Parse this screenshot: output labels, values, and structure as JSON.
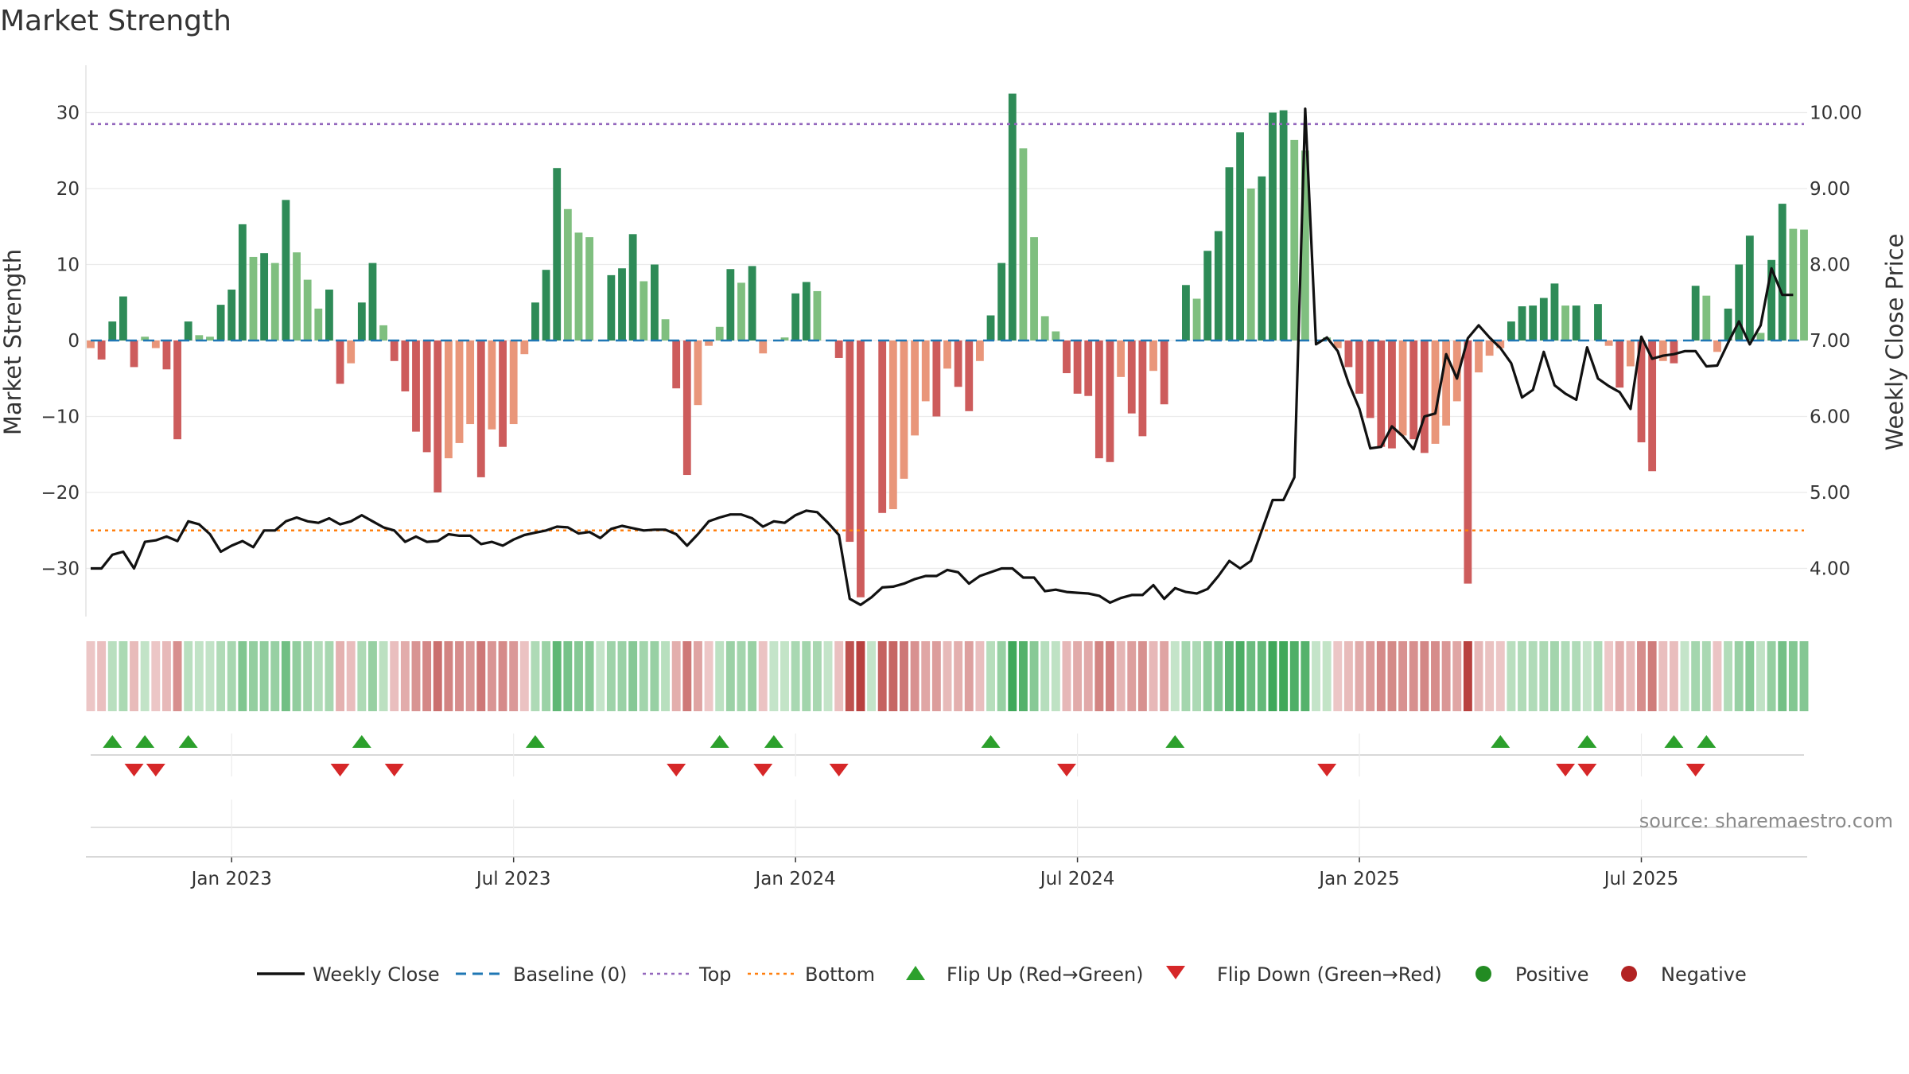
{
  "title": "Market Strength",
  "source": "source: sharemaestro.com",
  "colors": {
    "dark_green": "#2e8b57",
    "light_green": "#7fbf7f",
    "dark_red": "#cd5c5c",
    "light_red": "#e9967a",
    "close_line": "#111111",
    "baseline": "#1f77b4",
    "top": "#9467bd",
    "bottom": "#ff7f0e",
    "flip_up": "#2ca02c",
    "flip_down": "#d62728",
    "positive": "#228b22",
    "negative": "#b22222"
  },
  "chart_data": {
    "type": "bar",
    "ylabel_left": "Market Strength",
    "ylabel_right": "Weekly Close Price",
    "ylim_left": [
      -36,
      36
    ],
    "ylim_right": [
      3.3,
      10.2
    ],
    "left_ticks": [
      "30",
      "20",
      "10",
      "0",
      "−10",
      "−20",
      "−30"
    ],
    "right_ticks": [
      "10.00",
      "9.00",
      "8.00",
      "7.00",
      "6.00",
      "5.00",
      "4.00"
    ],
    "x_tick_labels": [
      "Jan 2023",
      "Jul 2023",
      "Jan 2024",
      "Jul 2024",
      "Jan 2025",
      "Jul 2025"
    ],
    "x_tick_weeks": [
      13,
      39,
      65,
      91,
      117,
      143
    ],
    "top_level": 28.5,
    "bottom_level": -25.0,
    "baseline": 0,
    "strength": [
      -1,
      -2.5,
      2.5,
      5.8,
      -3.5,
      0.5,
      -1,
      -3.8,
      -13,
      2.5,
      0.7,
      0.5,
      4.7,
      6.7,
      15.3,
      11,
      11.5,
      10.2,
      18.5,
      11.6,
      8,
      4.2,
      6.7,
      -5.7,
      -3,
      5,
      10.2,
      2,
      -2.7,
      -6.7,
      -12,
      -14.7,
      -20,
      -15.5,
      -13.5,
      -11,
      -18,
      -11.7,
      -14,
      -11,
      -1.8,
      5,
      9.3,
      22.7,
      17.3,
      14.2,
      13.6,
      0,
      8.6,
      9.5,
      14,
      7.8,
      10,
      2.8,
      -6.3,
      -17.7,
      -8.5,
      -0.7,
      1.8,
      9.4,
      7.6,
      9.8,
      -1.7,
      0,
      0.4,
      6.2,
      7.7,
      6.5,
      0,
      -2.3,
      -26.5,
      -33.8,
      0,
      -22.7,
      -22.2,
      -18.2,
      -12.5,
      -8,
      -10,
      -3.7,
      -6.1,
      -9.3,
      -2.7,
      3.3,
      10.2,
      32.5,
      25.3,
      13.6,
      3.2,
      1.2,
      -4.3,
      -7,
      -7.3,
      -15.5,
      -16,
      -4.8,
      -9.6,
      -12.6,
      -4,
      -8.4,
      0,
      7.3,
      5.5,
      11.8,
      14.4,
      22.8,
      27.4,
      20,
      21.6,
      30,
      30.3,
      26.4,
      25,
      0,
      0.4,
      -1,
      -3.5,
      -7,
      -10.2,
      -14,
      -14.2,
      -12.5,
      -13,
      -14.8,
      -13.6,
      -11.2,
      -8,
      -32,
      -4.2,
      -2,
      -1,
      2.5,
      4.5,
      4.6,
      5.6,
      7.5,
      4.6,
      4.6,
      0,
      4.8,
      -0.7,
      -6.2,
      -3.4,
      -13.4,
      -17.2,
      -2.7,
      -3,
      0,
      7.2,
      5.9,
      -1.5,
      4.2,
      10,
      13.8,
      1,
      10.6,
      18,
      14.7,
      14.6
    ],
    "series": [
      {
        "name": "Weekly Close",
        "values": [
          4.0,
          4.0,
          4.18,
          4.22,
          4.0,
          4.35,
          4.37,
          4.42,
          4.36,
          4.62,
          4.58,
          4.45,
          4.22,
          4.3,
          4.36,
          4.28,
          4.5,
          4.5,
          4.62,
          4.67,
          4.62,
          4.6,
          4.66,
          4.58,
          4.62,
          4.7,
          4.62,
          4.54,
          4.5,
          4.35,
          4.42,
          4.35,
          4.36,
          4.45,
          4.43,
          4.43,
          4.32,
          4.35,
          4.3,
          4.38,
          4.44,
          4.47,
          4.5,
          4.55,
          4.54,
          4.46,
          4.48,
          4.4,
          4.52,
          4.56,
          4.53,
          4.5,
          4.51,
          4.51,
          4.45,
          4.3,
          4.45,
          4.62,
          4.67,
          4.71,
          4.71,
          4.66,
          4.55,
          4.62,
          4.6,
          4.7,
          4.76,
          4.74,
          4.6,
          4.44,
          3.6,
          3.52,
          3.62,
          3.75,
          3.76,
          3.8,
          3.86,
          3.9,
          3.9,
          3.98,
          3.95,
          3.8,
          3.9,
          3.95,
          4.0,
          4.0,
          3.88,
          3.88,
          3.7,
          3.72,
          3.69,
          3.68,
          3.67,
          3.64,
          3.55,
          3.61,
          3.65,
          3.65,
          3.78,
          3.6,
          3.74,
          3.69,
          3.67,
          3.73,
          3.9,
          4.1,
          4.0,
          4.1,
          4.5,
          4.9,
          4.9,
          5.2,
          10.05,
          6.95,
          7.04,
          6.86,
          6.44,
          6.1,
          5.58,
          5.6,
          5.87,
          5.74,
          5.57,
          6.0,
          6.04,
          6.82,
          6.5,
          7.03,
          7.2,
          7.04,
          6.9,
          6.7,
          6.25,
          6.35,
          6.85,
          6.41,
          6.3,
          6.22,
          6.91,
          6.5,
          6.4,
          6.32,
          6.1,
          7.05,
          6.76,
          6.8,
          6.82,
          6.86,
          6.86,
          6.66,
          6.67,
          6.97,
          7.25,
          6.95,
          7.2,
          7.95,
          7.6,
          7.6
        ]
      },
      {
        "name": "Baseline (0)"
      },
      {
        "name": "Top"
      },
      {
        "name": "Bottom"
      },
      {
        "name": "Flip Up (Red→Green)",
        "weeks": [
          2,
          5,
          9,
          25,
          41,
          58,
          63,
          83,
          100,
          130,
          138,
          146,
          149
        ]
      },
      {
        "name": "Flip Down (Green→Red)",
        "weeks": [
          4,
          6,
          23,
          28,
          54,
          62,
          69,
          90,
          114,
          136,
          138,
          148
        ]
      },
      {
        "name": "Positive"
      },
      {
        "name": "Negative"
      }
    ]
  }
}
